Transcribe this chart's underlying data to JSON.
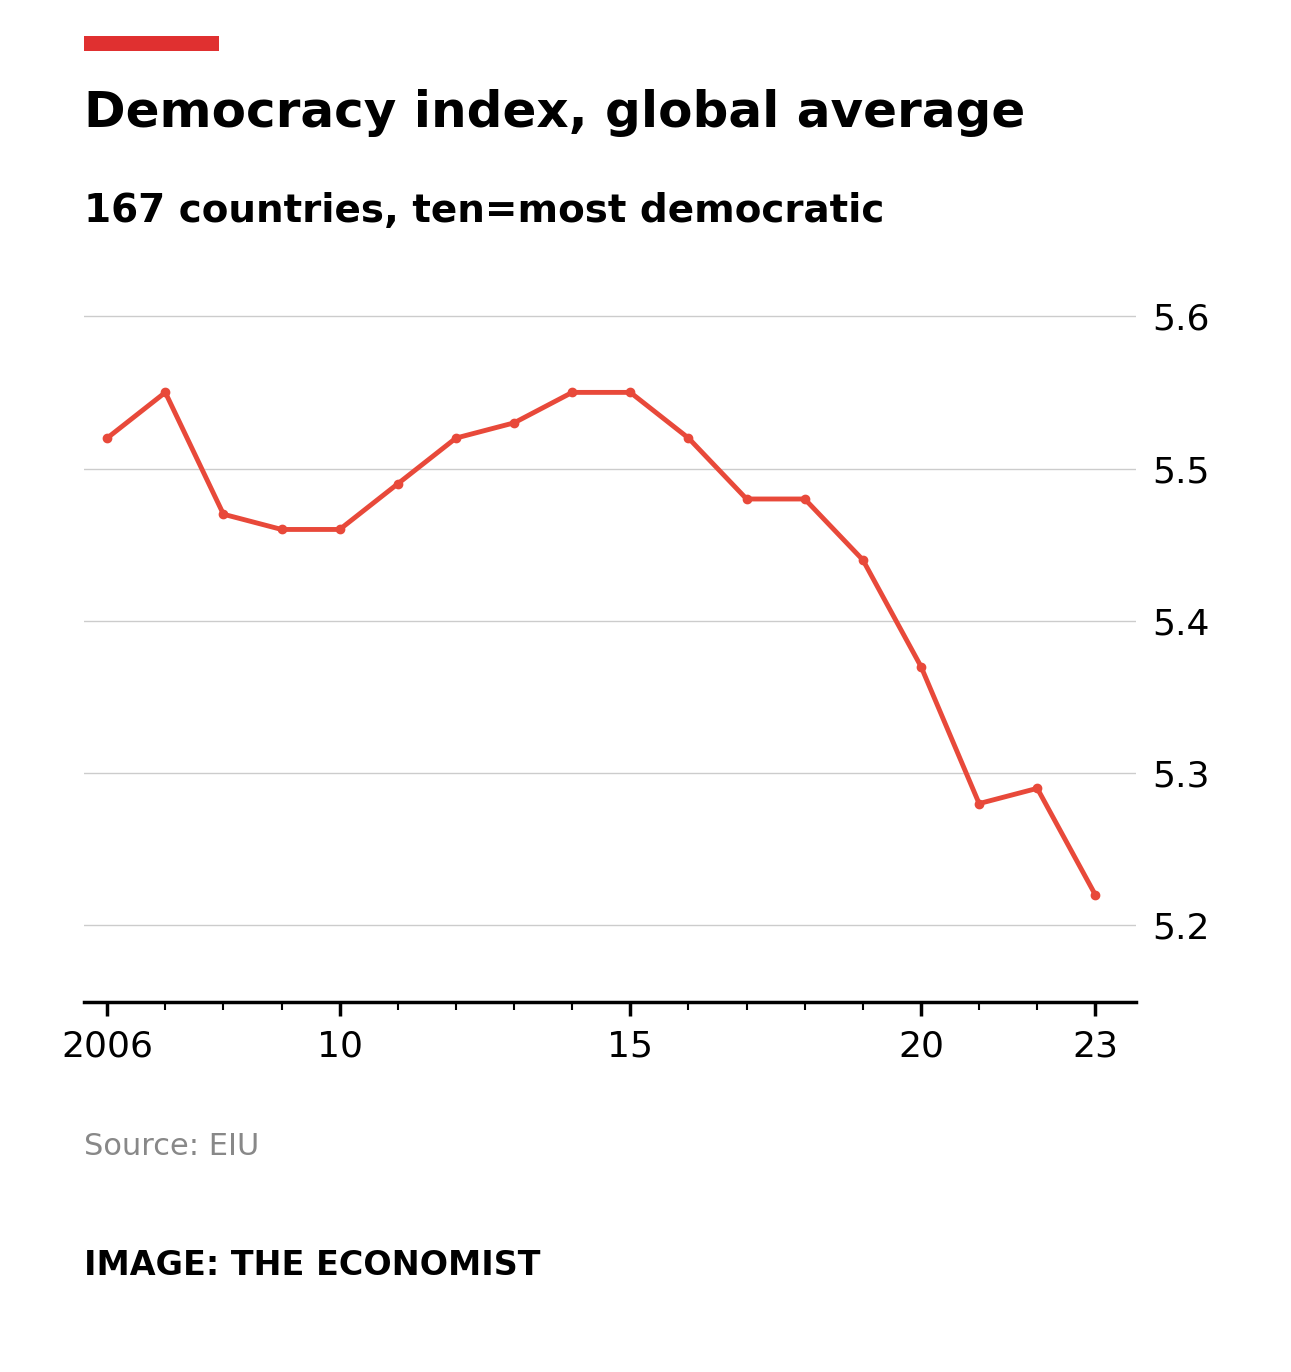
{
  "title": "Democracy index, global average",
  "subtitle": "167 countries, ten=most democratic",
  "source": "Source: EIU",
  "image_credit": "IMAGE: THE ECONOMIST",
  "accent_color": "#e03030",
  "line_color": "#e8493a",
  "background_color": "#ffffff",
  "years": [
    2006,
    2007,
    2008,
    2009,
    2010,
    2011,
    2012,
    2013,
    2014,
    2015,
    2016,
    2017,
    2018,
    2019,
    2020,
    2021,
    2022,
    2023
  ],
  "values": [
    5.52,
    5.55,
    5.47,
    5.46,
    5.46,
    5.49,
    5.52,
    5.53,
    5.55,
    5.55,
    5.52,
    5.48,
    5.48,
    5.44,
    5.37,
    5.28,
    5.29,
    5.22
  ],
  "ylim": [
    5.15,
    5.65
  ],
  "yticks": [
    5.2,
    5.3,
    5.4,
    5.5,
    5.6
  ],
  "xtick_labels": [
    "2006",
    "10",
    "15",
    "20",
    "23"
  ],
  "xtick_positions": [
    2006,
    2010,
    2015,
    2020,
    2023
  ],
  "grid_color": "#cccccc",
  "title_fontsize": 36,
  "subtitle_fontsize": 28,
  "source_fontsize": 22,
  "credit_fontsize": 24,
  "tick_fontsize": 26
}
